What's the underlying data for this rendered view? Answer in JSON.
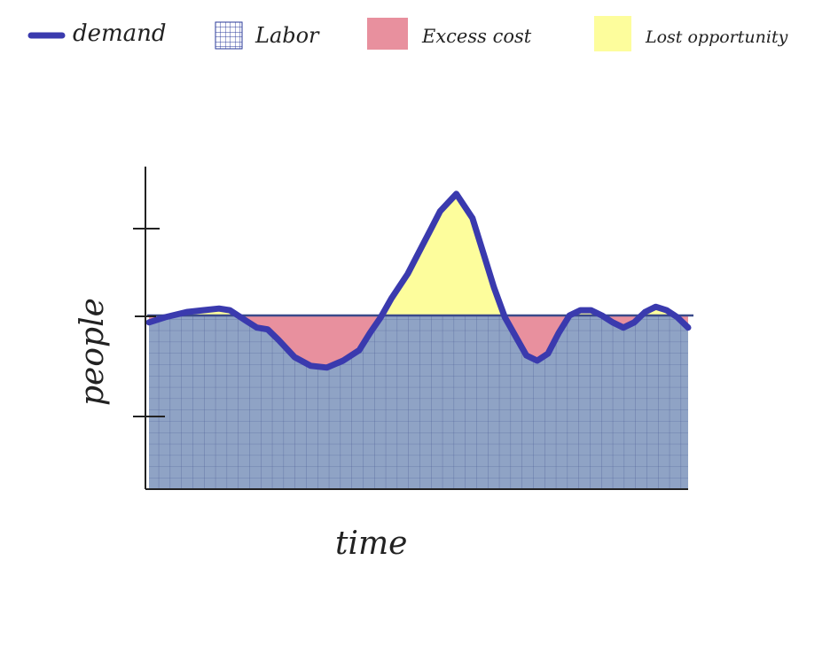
{
  "legend": {
    "items": [
      {
        "key": "demand",
        "label": "demand",
        "color": "#3a3aae"
      },
      {
        "key": "labor",
        "label": "Labor",
        "color": "#8fa3c5"
      },
      {
        "key": "excess",
        "label": "Excess cost",
        "color": "#e8909e"
      },
      {
        "key": "lost",
        "label": "Lost opportunity",
        "color": "#fdfd9c"
      }
    ]
  },
  "chart_data": {
    "type": "area",
    "title": "",
    "xlabel": "time",
    "ylabel": "people",
    "xlim": [
      0,
      100
    ],
    "ylim": [
      0,
      100
    ],
    "grid": true,
    "legend_position": "top",
    "labor_level": 50,
    "x": [
      0,
      3,
      7,
      10,
      13,
      15,
      18,
      20,
      22,
      24,
      27,
      30,
      33,
      36,
      39,
      41,
      43,
      45,
      48,
      50,
      52,
      54,
      57,
      60,
      62,
      64,
      66,
      68,
      70,
      72,
      74,
      76,
      78,
      80,
      82,
      84,
      86,
      88,
      90,
      92,
      94,
      96,
      98,
      100
    ],
    "series": [
      {
        "name": "demand",
        "values": [
          48,
          49.5,
          51,
          51.5,
          52,
          51.5,
          48.5,
          46.5,
          46,
          43,
          38,
          35.5,
          35,
          37,
          40,
          45,
          49.5,
          55,
          62,
          68,
          74,
          80,
          85,
          78,
          68,
          58,
          49.5,
          44,
          38.5,
          37,
          39,
          45,
          50,
          51.5,
          51.5,
          50,
          48,
          46.5,
          48,
          51,
          52.5,
          51.5,
          49.5,
          46.5
        ]
      }
    ],
    "colors": {
      "demand": "#3a3aae",
      "labor": "#8fa3c5",
      "labor_grid": "#3a4a8a",
      "excess": "#e8909e",
      "lost": "#fdfd9c",
      "axis": "#222222"
    }
  }
}
